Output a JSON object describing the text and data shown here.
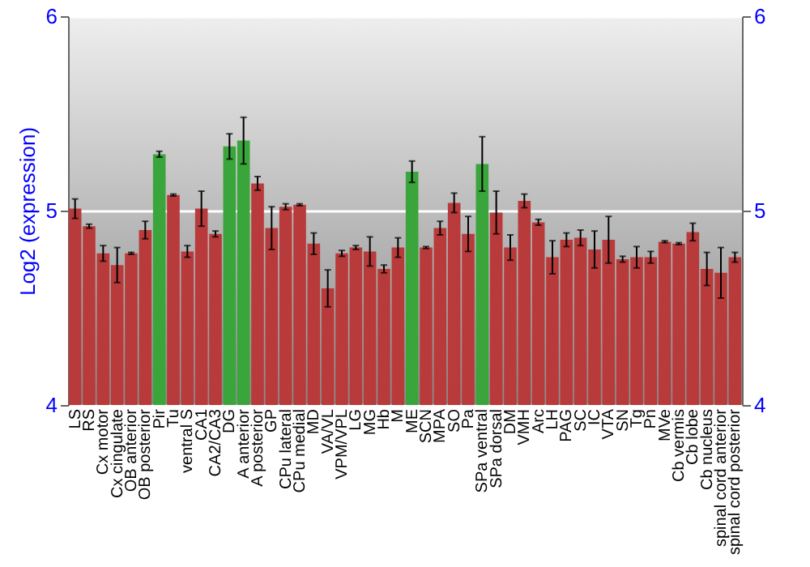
{
  "chart_data": {
    "type": "bar",
    "ylabel": "Log2 (expression)",
    "categories": [
      "LS",
      "RS",
      "Cx motor",
      "Cx cingulate",
      "OB anterior",
      "OB posterior",
      "Pir",
      "Tu",
      "ventral S",
      "CA1",
      "CA2/CA3",
      "DG",
      "A anterior",
      "A posterior",
      "GP",
      "CPu lateral",
      "CPu medial",
      "MD",
      "VA/VL",
      "VPM/VPL",
      "LG",
      "MG",
      "Hb",
      "M",
      "ME",
      "SCN",
      "MPA",
      "SO",
      "Pa",
      "SPa ventral",
      "SPa dorsal",
      "DM",
      "VMH",
      "Arc",
      "LH",
      "PAG",
      "SC",
      "IC",
      "VTA",
      "SN",
      "Tg",
      "Pn",
      "MVe",
      "Cb vermis",
      "Cb lobe",
      "Cb nucleus",
      "spinal cord anterior",
      "spinal cord posterior"
    ],
    "values": [
      5.01,
      4.92,
      4.78,
      4.72,
      4.78,
      4.9,
      5.29,
      5.08,
      4.79,
      5.01,
      4.88,
      5.33,
      5.36,
      5.14,
      4.91,
      5.02,
      5.03,
      4.83,
      4.6,
      4.78,
      4.81,
      4.79,
      4.7,
      4.81,
      5.2,
      4.81,
      4.91,
      5.04,
      4.88,
      5.24,
      4.99,
      4.81,
      5.05,
      4.94,
      4.76,
      4.85,
      4.86,
      4.8,
      4.85,
      4.75,
      4.76,
      4.76,
      4.84,
      4.83,
      4.89,
      4.7,
      4.68,
      4.76
    ],
    "errors": [
      0.05,
      0.01,
      0.04,
      0.09,
      0.005,
      0.045,
      0.015,
      0.005,
      0.03,
      0.09,
      0.015,
      0.065,
      0.12,
      0.035,
      0.11,
      0.015,
      0.005,
      0.055,
      0.095,
      0.015,
      0.01,
      0.075,
      0.02,
      0.05,
      0.055,
      0.005,
      0.035,
      0.05,
      0.09,
      0.14,
      0.11,
      0.065,
      0.035,
      0.015,
      0.085,
      0.035,
      0.04,
      0.095,
      0.12,
      0.015,
      0.055,
      0.03,
      0.005,
      0.005,
      0.045,
      0.085,
      0.13,
      0.025
    ],
    "colors": [
      "#b83a3a",
      "#b83a3a",
      "#b83a3a",
      "#b83a3a",
      "#b83a3a",
      "#b83a3a",
      "#3aa53a",
      "#b83a3a",
      "#b83a3a",
      "#b83a3a",
      "#b83a3a",
      "#3aa53a",
      "#3aa53a",
      "#b83a3a",
      "#b83a3a",
      "#b83a3a",
      "#b83a3a",
      "#b83a3a",
      "#b83a3a",
      "#b83a3a",
      "#b83a3a",
      "#b83a3a",
      "#b83a3a",
      "#b83a3a",
      "#3aa53a",
      "#b83a3a",
      "#b83a3a",
      "#b83a3a",
      "#b83a3a",
      "#3aa53a",
      "#b83a3a",
      "#b83a3a",
      "#b83a3a",
      "#b83a3a",
      "#b83a3a",
      "#b83a3a",
      "#b83a3a",
      "#b83a3a",
      "#b83a3a",
      "#b83a3a",
      "#b83a3a",
      "#b83a3a",
      "#b83a3a",
      "#b83a3a",
      "#b83a3a",
      "#b83a3a",
      "#b83a3a",
      "#b83a3a"
    ],
    "ylim": [
      4,
      6
    ],
    "yticks": [
      4,
      5,
      6
    ],
    "y2lim": [
      4,
      6
    ],
    "y2ticks": [
      4,
      5,
      6
    ],
    "grid": "y"
  }
}
